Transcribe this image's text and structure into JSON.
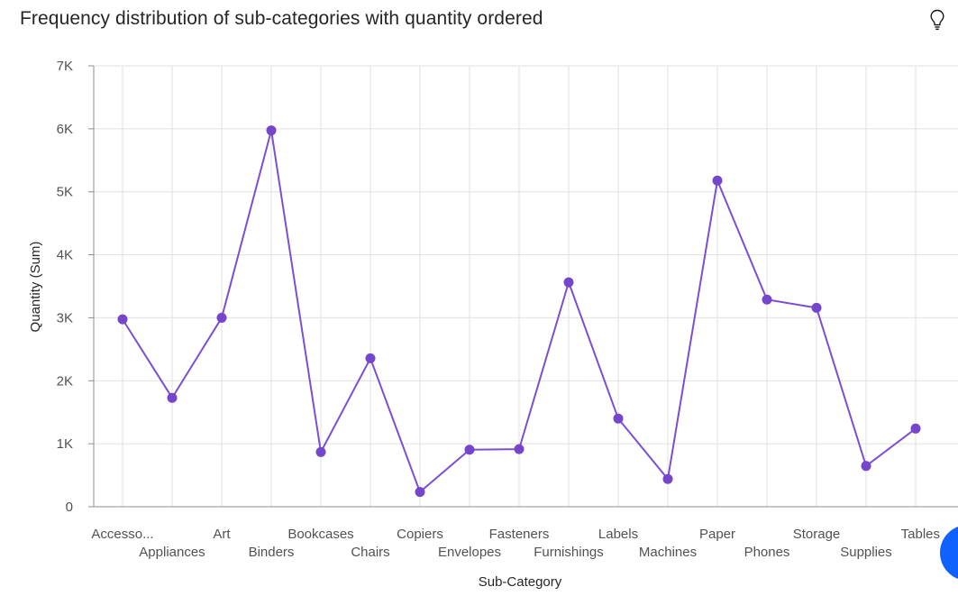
{
  "title": "Frequency distribution of sub-categories with quantity ordered",
  "icons": {
    "insight": "lightbulb-icon",
    "action": "chat-launcher-icon"
  },
  "colors": {
    "series": "#7b4fd0",
    "point": "#7545cc",
    "grid": "#e0e0e0",
    "action": "#0f62fe"
  },
  "chart_data": {
    "type": "line",
    "xlabel": "Sub-Category",
    "ylabel": "Quantity (Sum)",
    "ylim": [
      0,
      7000
    ],
    "yticks": [
      0,
      1000,
      2000,
      3000,
      4000,
      5000,
      6000,
      7000
    ],
    "ytick_labels": [
      "0",
      "1K",
      "2K",
      "3K",
      "4K",
      "5K",
      "6K",
      "7K"
    ],
    "grid": true,
    "categories": [
      "Accessories",
      "Appliances",
      "Art",
      "Binders",
      "Bookcases",
      "Chairs",
      "Copiers",
      "Envelopes",
      "Fasteners",
      "Furnishings",
      "Labels",
      "Machines",
      "Paper",
      "Phones",
      "Storage",
      "Supplies",
      "Tables"
    ],
    "category_labels": [
      "Accesso...",
      "Appliances",
      "Art",
      "Binders",
      "Bookcases",
      "Chairs",
      "Copiers",
      "Envelopes",
      "Fasteners",
      "Furnishings",
      "Labels",
      "Machines",
      "Paper",
      "Phones",
      "Storage",
      "Supplies",
      "Tables"
    ],
    "series": [
      {
        "values": [
          2976,
          1729,
          3000,
          5974,
          868,
          2356,
          234,
          906,
          914,
          3563,
          1400,
          440,
          5178,
          3289,
          3158,
          647,
          1241
        ]
      }
    ]
  }
}
